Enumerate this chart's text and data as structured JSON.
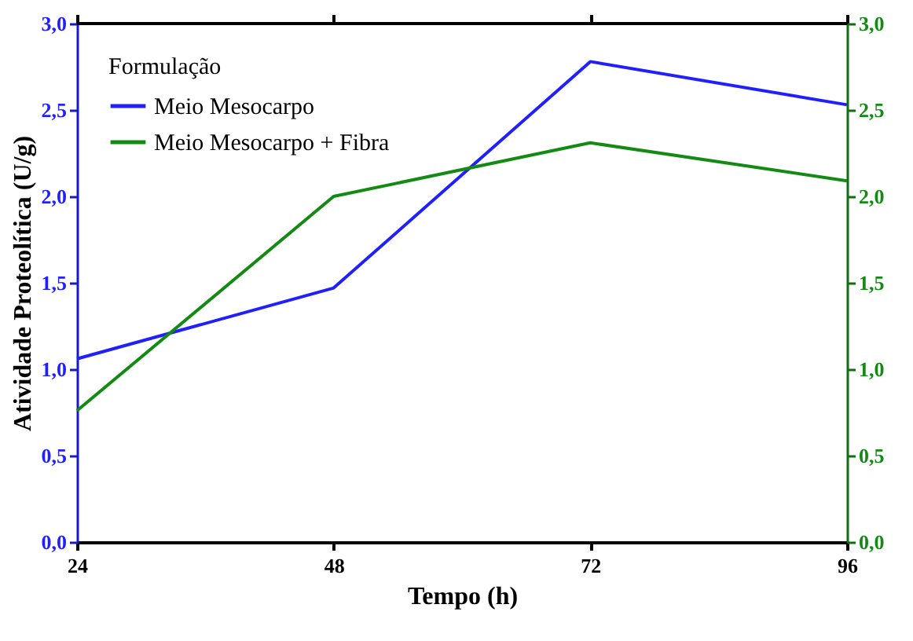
{
  "chart_data": {
    "type": "line",
    "xlabel": "Tempo (h)",
    "ylabel": "Atividade Proteolítica (U/g)",
    "legend_title": "Formulação",
    "legend": "top left",
    "grid": false,
    "marker": "none",
    "line_style": "solid",
    "x": [
      24,
      48,
      72,
      96
    ],
    "xlim": [
      24,
      96
    ],
    "xticks": [
      24,
      48,
      72,
      96
    ],
    "ylim": [
      0,
      3
    ],
    "yticks": [
      {
        "value": 0,
        "label": "0,0"
      },
      {
        "value": 0.5,
        "label": "0,5"
      },
      {
        "value": 1,
        "label": "1,0"
      },
      {
        "value": 1.5,
        "label": "1,5"
      },
      {
        "value": 2,
        "label": "2,0"
      },
      {
        "value": 2.5,
        "label": "2,5"
      },
      {
        "value": 3,
        "label": "3,0"
      }
    ],
    "y2lim": [
      0,
      3
    ],
    "y2ticks": [
      {
        "value": 0,
        "label": "0,0"
      },
      {
        "value": 0.5,
        "label": "0,5"
      },
      {
        "value": 1,
        "label": "1,0"
      },
      {
        "value": 1.5,
        "label": "1,5"
      },
      {
        "value": 2,
        "label": "2,0"
      },
      {
        "value": 2.5,
        "label": "2,5"
      },
      {
        "value": 3,
        "label": "3,0"
      }
    ],
    "series": [
      {
        "name": "Meio Mesocarpo",
        "color": "#1f1fff",
        "values": [
          1.06,
          1.47,
          2.78,
          2.53
        ]
      },
      {
        "name": "Meio Mesocarpo + Fibra",
        "color": "#138a13",
        "axis": "y2",
        "values": [
          0.76,
          2.0,
          2.31,
          2.09
        ]
      }
    ]
  }
}
